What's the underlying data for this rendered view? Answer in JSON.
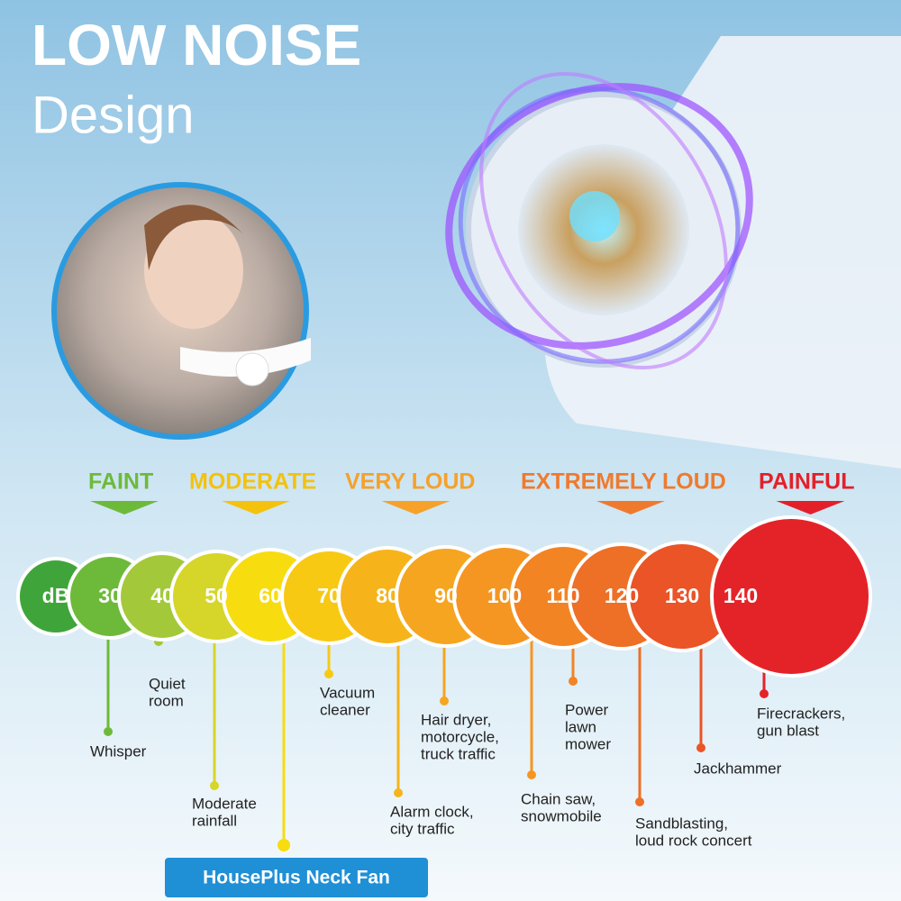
{
  "header": {
    "title": "LOW NOISE",
    "subtitle": "Design"
  },
  "levels": [
    {
      "label": "FAINT",
      "color": "#6dba3a"
    },
    {
      "label": "MODERATE",
      "color": "#f4c20d"
    },
    {
      "label": "VERY LOUD",
      "color": "#f5a12a"
    },
    {
      "label": "EXTREMELY LOUD",
      "color": "#ef7a2e"
    },
    {
      "label": "PAINFUL",
      "color": "#e3202a"
    }
  ],
  "scale": [
    {
      "label": "dB",
      "color": "#3fa53a"
    },
    {
      "label": "30",
      "color": "#6dba3a"
    },
    {
      "label": "40",
      "color": "#a3c93a"
    },
    {
      "label": "50",
      "color": "#d6d52a"
    },
    {
      "label": "60",
      "color": "#f7dc10"
    },
    {
      "label": "70",
      "color": "#f8c913"
    },
    {
      "label": "80",
      "color": "#f6b41a"
    },
    {
      "label": "90",
      "color": "#f5a51f"
    },
    {
      "label": "100",
      "color": "#f59622"
    },
    {
      "label": "110",
      "color": "#f28424"
    },
    {
      "label": "120",
      "color": "#ee6f26"
    },
    {
      "label": "130",
      "color": "#ea5426"
    },
    {
      "label": "140",
      "color": "#e42329"
    }
  ],
  "sources": [
    {
      "lines": [
        "Whisper"
      ]
    },
    {
      "lines": [
        "Quiet",
        "room"
      ]
    },
    {
      "lines": [
        "Moderate",
        "rainfall"
      ]
    },
    {
      "lines": [
        "HousePlus Neck Fan"
      ]
    },
    {
      "lines": [
        "Vacuum",
        "cleaner"
      ]
    },
    {
      "lines": [
        "Alarm clock,",
        "city traffic"
      ]
    },
    {
      "lines": [
        "Hair dryer,",
        "motorcycle,",
        "truck traffic"
      ]
    },
    {
      "lines": [
        "Chain saw,",
        "snowmobile"
      ]
    },
    {
      "lines": [
        "Power",
        "lawn",
        "mower"
      ]
    },
    {
      "lines": [
        "Sandblasting,",
        "loud rock concert"
      ]
    },
    {
      "lines": [
        "Jackhammer"
      ]
    },
    {
      "lines": [
        "Firecrackers,",
        "gun blast"
      ]
    }
  ]
}
